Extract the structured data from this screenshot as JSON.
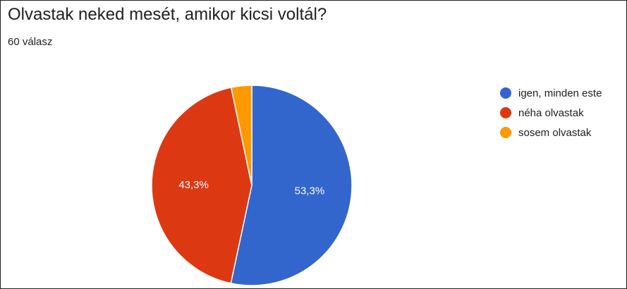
{
  "header": {
    "title": "Olvastak neked mesét, amikor kicsi voltál?",
    "response_count": "60 válasz"
  },
  "chart_data": {
    "type": "pie",
    "categories": [
      "igen, minden este",
      "néha olvastak",
      "sosem olvastak"
    ],
    "values": [
      53.3,
      43.3,
      3.3
    ],
    "value_labels": [
      "53,3%",
      "43,3%",
      ""
    ],
    "colors": [
      "#3366cc",
      "#dc3912",
      "#ff9900"
    ],
    "start_angle_deg": 90,
    "direction": "clockwise",
    "legend_position": "right"
  }
}
